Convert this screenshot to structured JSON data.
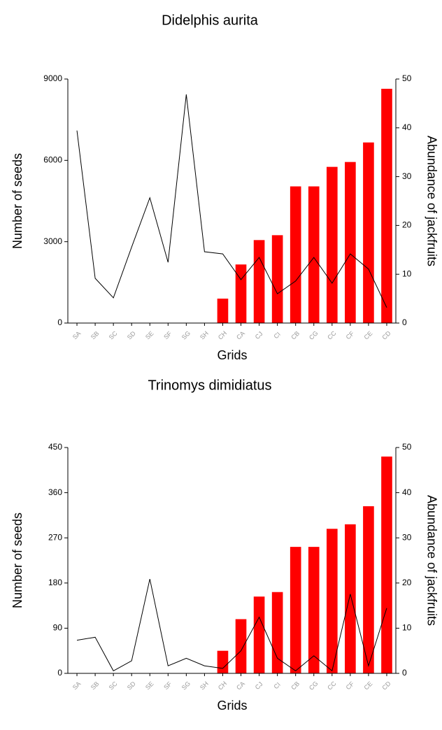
{
  "chart_data": [
    {
      "type": "bar_line",
      "title": "Didelphis aurita",
      "x_label": "Grids",
      "y_label": "Number of seeds",
      "y2_label": "Abundance of jackfruits",
      "categories": [
        "SA",
        "SB",
        "SC",
        "SD",
        "SE",
        "SF",
        "SG",
        "SH",
        "CH",
        "CA",
        "CJ",
        "CI",
        "CB",
        "CG",
        "CC",
        "CF",
        "CE",
        "CD"
      ],
      "series": [
        {
          "type": "bar",
          "axis": "y2",
          "color": "#ff0000",
          "values": [
            0,
            0,
            0,
            0,
            0,
            0,
            0,
            0,
            5,
            12,
            17,
            18,
            28,
            28,
            32,
            33,
            37,
            48
          ]
        },
        {
          "type": "line",
          "axis": "y",
          "color": "#000000",
          "values": [
            7100,
            1650,
            930,
            2800,
            4620,
            2240,
            8430,
            2630,
            2550,
            1600,
            2420,
            1080,
            1550,
            2420,
            1470,
            2550,
            1990,
            570
          ]
        }
      ],
      "ylim": [
        0,
        9000
      ],
      "yticks": [
        0,
        3000,
        6000,
        9000
      ],
      "y2lim": [
        0,
        50
      ],
      "y2ticks": [
        0,
        10,
        20,
        30,
        40,
        50
      ]
    },
    {
      "type": "bar_line",
      "title": "Trinomys dimidiatus",
      "x_label": "Grids",
      "y_label": "Number of seeds",
      "y2_label": "Abundance of jackfruits",
      "categories": [
        "SA",
        "SB",
        "SC",
        "SD",
        "SE",
        "SF",
        "SG",
        "SH",
        "CH",
        "CA",
        "CJ",
        "CI",
        "CB",
        "CG",
        "CC",
        "CF",
        "CE",
        "CD"
      ],
      "series": [
        {
          "type": "bar",
          "axis": "y2",
          "color": "#ff0000",
          "values": [
            0,
            0,
            0,
            0,
            0,
            0,
            0,
            0,
            5,
            12,
            17,
            18,
            28,
            28,
            32,
            33,
            37,
            48
          ]
        },
        {
          "type": "line",
          "axis": "y",
          "color": "#000000",
          "values": [
            66,
            72,
            5,
            25,
            188,
            15,
            30,
            15,
            10,
            45,
            112,
            30,
            5,
            35,
            5,
            158,
            15,
            130
          ]
        }
      ],
      "ylim": [
        0,
        450
      ],
      "yticks": [
        0,
        90,
        180,
        270,
        360,
        450
      ],
      "y2lim": [
        0,
        50
      ],
      "y2ticks": [
        0,
        10,
        20,
        30,
        40,
        50
      ]
    }
  ]
}
